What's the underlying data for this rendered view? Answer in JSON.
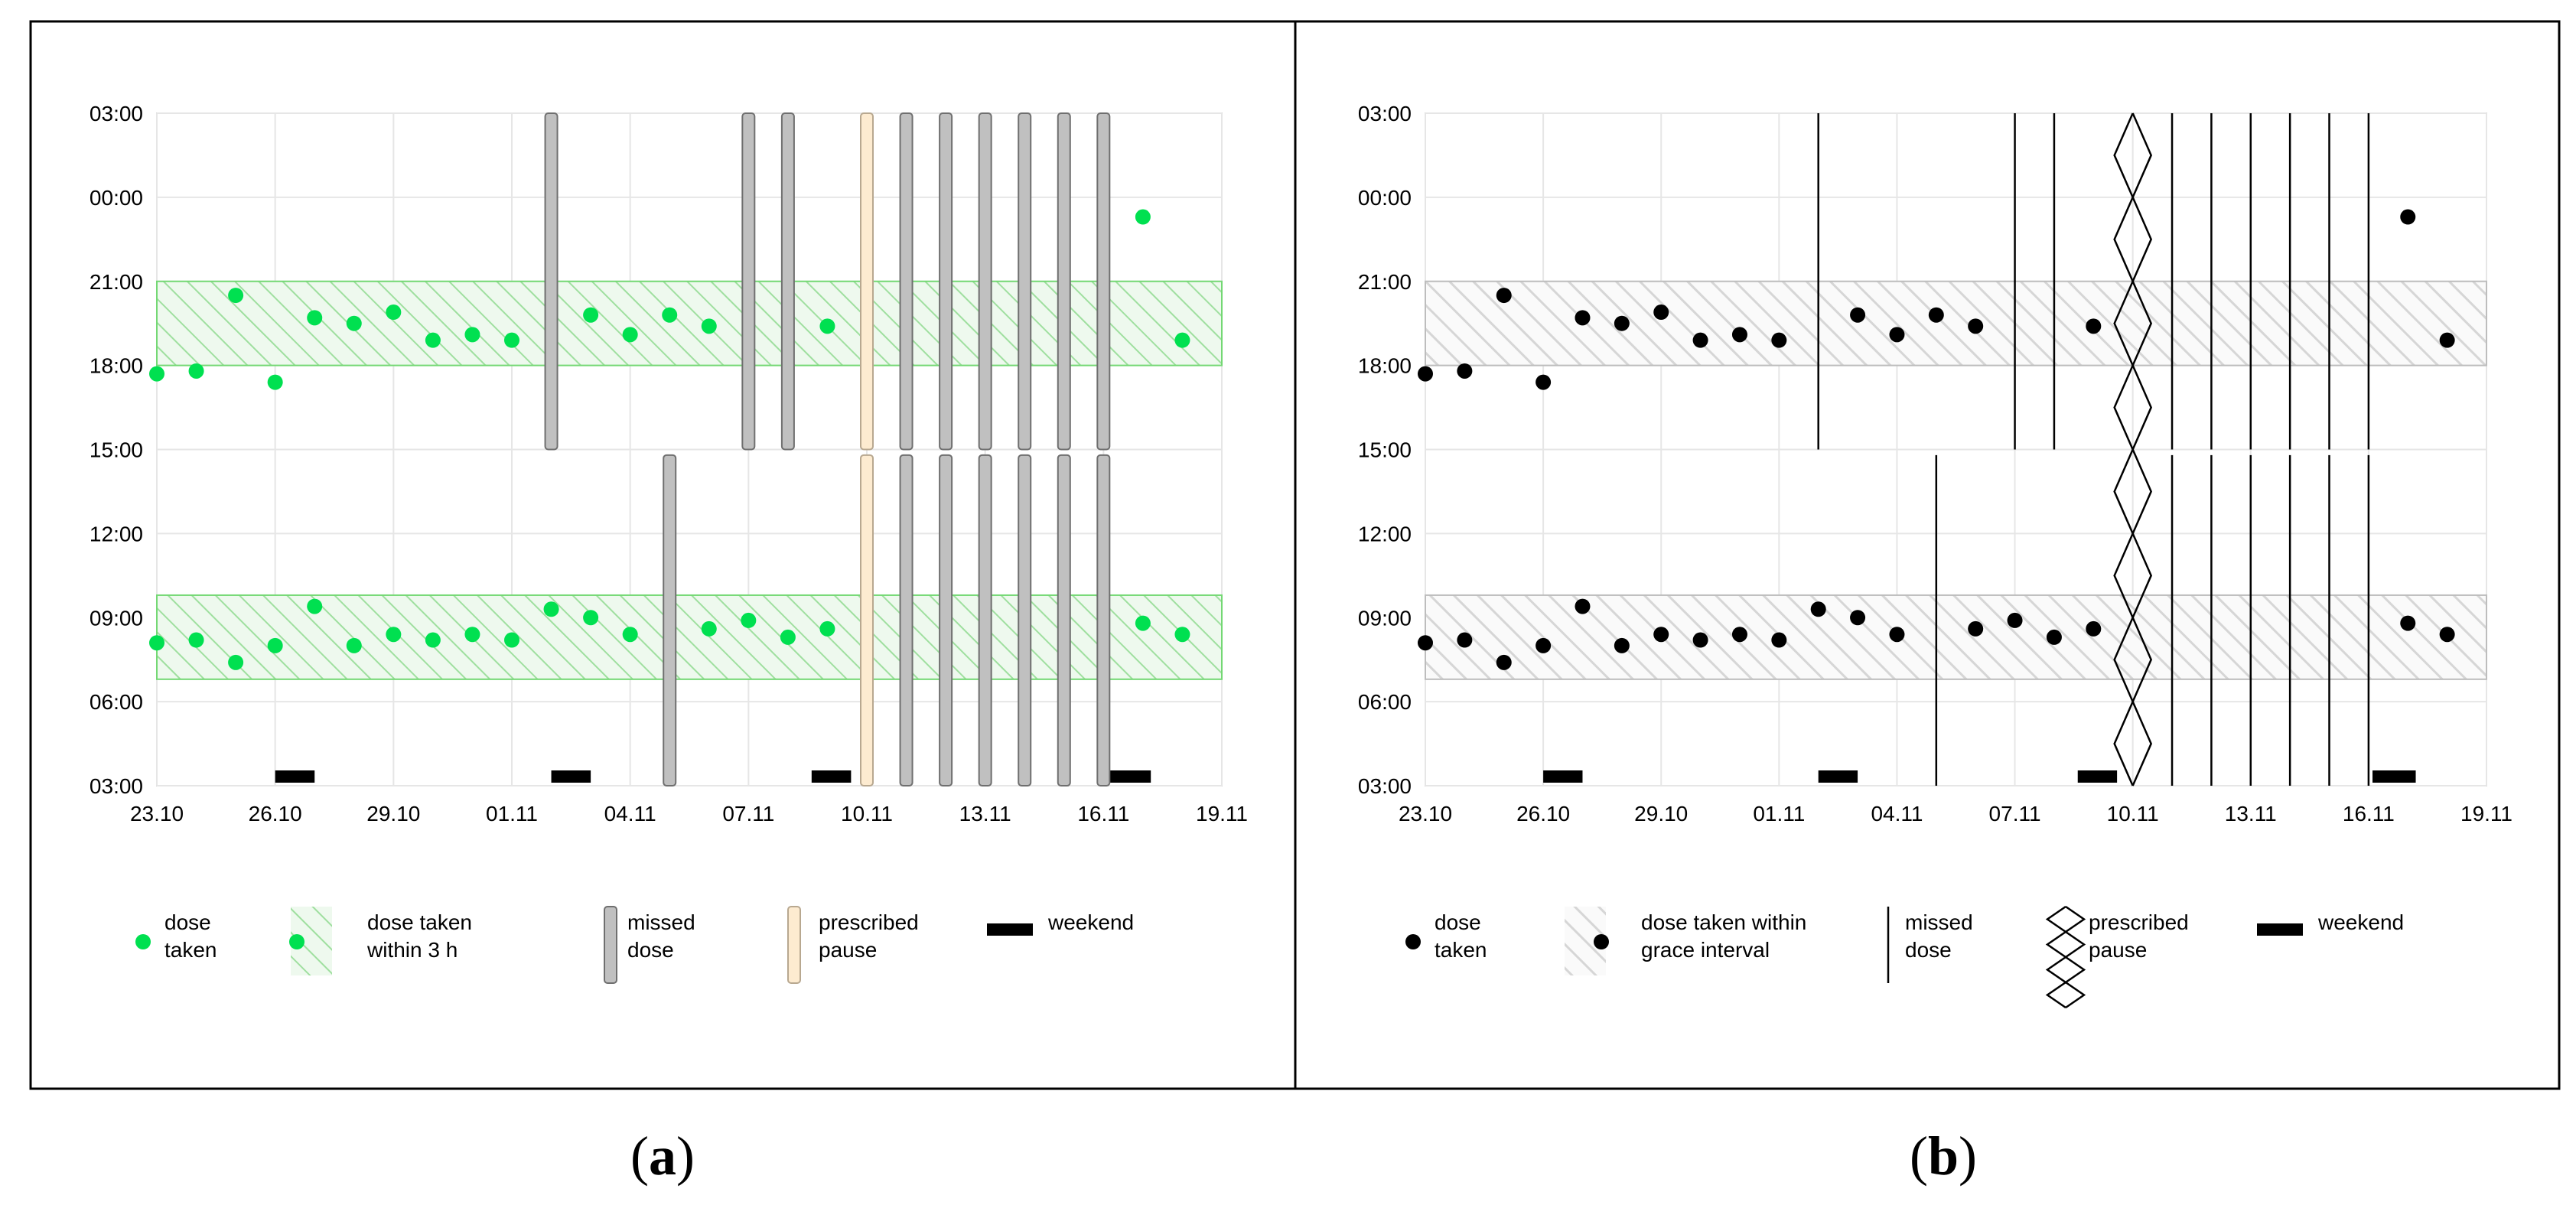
{
  "chart_data": [
    {
      "panel": "a",
      "type": "scatter",
      "title": "",
      "xlabel": "",
      "ylabel": "",
      "x_tick_labels": [
        "23.10",
        "26.10",
        "29.10",
        "01.11",
        "04.11",
        "07.11",
        "10.11",
        "13.11",
        "16.11",
        "19.11"
      ],
      "y_tick_labels": [
        "03:00",
        "06:00",
        "09:00",
        "12:00",
        "15:00",
        "18:00",
        "21:00",
        "00:00",
        "03:00"
      ],
      "x_range_days": [
        0,
        27
      ],
      "y_range_hours": [
        3,
        27
      ],
      "grace_intervals_hours": [
        [
          6.8,
          9.8
        ],
        [
          18,
          21
        ]
      ],
      "doses_taken": [
        {
          "day": 0,
          "hour": 17.7
        },
        {
          "day": 1,
          "hour": 17.8
        },
        {
          "day": 2,
          "hour": 20.5
        },
        {
          "day": 3,
          "hour": 17.4
        },
        {
          "day": 4,
          "hour": 19.7
        },
        {
          "day": 5,
          "hour": 19.5
        },
        {
          "day": 6,
          "hour": 19.9
        },
        {
          "day": 7,
          "hour": 18.9
        },
        {
          "day": 8,
          "hour": 19.1
        },
        {
          "day": 9,
          "hour": 18.9
        },
        {
          "day": 11,
          "hour": 19.8
        },
        {
          "day": 12,
          "hour": 19.1
        },
        {
          "day": 13,
          "hour": 19.8
        },
        {
          "day": 14,
          "hour": 19.4
        },
        {
          "day": 17,
          "hour": 19.4
        },
        {
          "day": 25,
          "hour": 23.3
        },
        {
          "day": 26,
          "hour": 18.9
        },
        {
          "day": 0,
          "hour": 8.1
        },
        {
          "day": 1,
          "hour": 8.2
        },
        {
          "day": 2,
          "hour": 7.4
        },
        {
          "day": 3,
          "hour": 8.0
        },
        {
          "day": 4,
          "hour": 9.4
        },
        {
          "day": 5,
          "hour": 8.0
        },
        {
          "day": 6,
          "hour": 8.4
        },
        {
          "day": 7,
          "hour": 8.2
        },
        {
          "day": 8,
          "hour": 8.4
        },
        {
          "day": 9,
          "hour": 8.2
        },
        {
          "day": 10,
          "hour": 9.3
        },
        {
          "day": 11,
          "hour": 9.0
        },
        {
          "day": 12,
          "hour": 8.4
        },
        {
          "day": 14,
          "hour": 8.6
        },
        {
          "day": 15,
          "hour": 8.9
        },
        {
          "day": 16,
          "hour": 8.3
        },
        {
          "day": 17,
          "hour": 8.6
        },
        {
          "day": 25,
          "hour": 8.8
        },
        {
          "day": 26,
          "hour": 8.4
        }
      ],
      "missed_doses": [
        {
          "day": 10,
          "slot": "evening"
        },
        {
          "day": 15,
          "slot": "evening"
        },
        {
          "day": 16,
          "slot": "evening"
        },
        {
          "day": 19,
          "slot": "evening"
        },
        {
          "day": 20,
          "slot": "evening"
        },
        {
          "day": 21,
          "slot": "evening"
        },
        {
          "day": 22,
          "slot": "evening"
        },
        {
          "day": 23,
          "slot": "evening"
        },
        {
          "day": 24,
          "slot": "evening"
        },
        {
          "day": 13,
          "slot": "morning"
        },
        {
          "day": 19,
          "slot": "morning"
        },
        {
          "day": 20,
          "slot": "morning"
        },
        {
          "day": 21,
          "slot": "morning"
        },
        {
          "day": 22,
          "slot": "morning"
        },
        {
          "day": 23,
          "slot": "morning"
        },
        {
          "day": 24,
          "slot": "morning"
        }
      ],
      "prescribed_pause": [
        {
          "day": 18,
          "slot": "evening"
        },
        {
          "day": 18,
          "slot": "morning"
        }
      ],
      "weekends": [
        [
          3,
          4
        ],
        [
          10,
          11
        ],
        [
          16.6,
          17.6
        ],
        [
          24.1,
          25.2
        ]
      ],
      "legend": [
        {
          "key": "dose",
          "label_lines": [
            "dose",
            "taken"
          ]
        },
        {
          "key": "band",
          "label_lines": [
            "dose taken",
            "within 3 h"
          ]
        },
        {
          "key": "missed",
          "label_lines": [
            "missed",
            "dose"
          ]
        },
        {
          "key": "pause",
          "label_lines": [
            "prescribed",
            "pause"
          ]
        },
        {
          "key": "weekend",
          "label_lines": [
            "weekend"
          ]
        }
      ],
      "colors": {
        "dose": "#00e050",
        "band": "#74d874",
        "band_fill": "#eaf7ea",
        "missed": "#c0c0c0",
        "missed_stroke": "#6f6f6f",
        "pause": "#fdebd0",
        "pause_stroke": "#b8a890",
        "weekend": "#000000"
      }
    },
    {
      "panel": "b",
      "type": "scatter",
      "title": "",
      "xlabel": "",
      "ylabel": "",
      "x_tick_labels": [
        "23.10",
        "26.10",
        "29.10",
        "01.11",
        "04.11",
        "07.11",
        "10.11",
        "13.11",
        "16.11",
        "19.11"
      ],
      "y_tick_labels": [
        "03:00",
        "06:00",
        "09:00",
        "12:00",
        "15:00",
        "18:00",
        "21:00",
        "00:00",
        "03:00"
      ],
      "x_range_days": [
        0,
        27
      ],
      "y_range_hours": [
        3,
        27
      ],
      "grace_intervals_hours": [
        [
          6.8,
          9.8
        ],
        [
          18,
          21
        ]
      ],
      "doses_taken": [
        {
          "day": 0,
          "hour": 17.7
        },
        {
          "day": 1,
          "hour": 17.8
        },
        {
          "day": 2,
          "hour": 20.5
        },
        {
          "day": 3,
          "hour": 17.4
        },
        {
          "day": 4,
          "hour": 19.7
        },
        {
          "day": 5,
          "hour": 19.5
        },
        {
          "day": 6,
          "hour": 19.9
        },
        {
          "day": 7,
          "hour": 18.9
        },
        {
          "day": 8,
          "hour": 19.1
        },
        {
          "day": 9,
          "hour": 18.9
        },
        {
          "day": 11,
          "hour": 19.8
        },
        {
          "day": 12,
          "hour": 19.1
        },
        {
          "day": 13,
          "hour": 19.8
        },
        {
          "day": 14,
          "hour": 19.4
        },
        {
          "day": 17,
          "hour": 19.4
        },
        {
          "day": 25,
          "hour": 23.3
        },
        {
          "day": 26,
          "hour": 18.9
        },
        {
          "day": 0,
          "hour": 8.1
        },
        {
          "day": 1,
          "hour": 8.2
        },
        {
          "day": 2,
          "hour": 7.4
        },
        {
          "day": 3,
          "hour": 8.0
        },
        {
          "day": 4,
          "hour": 9.4
        },
        {
          "day": 5,
          "hour": 8.0
        },
        {
          "day": 6,
          "hour": 8.4
        },
        {
          "day": 7,
          "hour": 8.2
        },
        {
          "day": 8,
          "hour": 8.4
        },
        {
          "day": 9,
          "hour": 8.2
        },
        {
          "day": 10,
          "hour": 9.3
        },
        {
          "day": 11,
          "hour": 9.0
        },
        {
          "day": 12,
          "hour": 8.4
        },
        {
          "day": 14,
          "hour": 8.6
        },
        {
          "day": 15,
          "hour": 8.9
        },
        {
          "day": 16,
          "hour": 8.3
        },
        {
          "day": 17,
          "hour": 8.6
        },
        {
          "day": 25,
          "hour": 8.8
        },
        {
          "day": 26,
          "hour": 8.4
        }
      ],
      "missed_doses": [
        {
          "day": 10,
          "slot": "evening"
        },
        {
          "day": 15,
          "slot": "evening"
        },
        {
          "day": 16,
          "slot": "evening"
        },
        {
          "day": 19,
          "slot": "evening"
        },
        {
          "day": 20,
          "slot": "evening"
        },
        {
          "day": 21,
          "slot": "evening"
        },
        {
          "day": 22,
          "slot": "evening"
        },
        {
          "day": 23,
          "slot": "evening"
        },
        {
          "day": 24,
          "slot": "evening"
        },
        {
          "day": 13,
          "slot": "morning"
        },
        {
          "day": 19,
          "slot": "morning"
        },
        {
          "day": 20,
          "slot": "morning"
        },
        {
          "day": 21,
          "slot": "morning"
        },
        {
          "day": 22,
          "slot": "morning"
        },
        {
          "day": 23,
          "slot": "morning"
        },
        {
          "day": 24,
          "slot": "morning"
        }
      ],
      "prescribed_pause": [
        {
          "day": 18,
          "slot": "full"
        }
      ],
      "weekends": [
        [
          3,
          4
        ],
        [
          10,
          11
        ],
        [
          16.6,
          17.6
        ],
        [
          24.1,
          25.2
        ]
      ],
      "legend": [
        {
          "key": "dose",
          "label_lines": [
            "dose",
            "taken"
          ]
        },
        {
          "key": "band",
          "label_lines": [
            "dose taken within",
            "grace interval"
          ]
        },
        {
          "key": "missed",
          "label_lines": [
            "missed",
            "dose"
          ]
        },
        {
          "key": "pause",
          "label_lines": [
            "prescribed",
            "pause"
          ]
        },
        {
          "key": "weekend",
          "label_lines": [
            "weekend"
          ]
        }
      ],
      "colors": {
        "dose": "#000000",
        "band": "#bdbdbd",
        "band_fill": "#f4f4f4",
        "missed": "#000000",
        "missed_stroke": "#000000",
        "pause": "#000000",
        "pause_stroke": "#000000",
        "weekend": "#000000"
      }
    }
  ],
  "panel_labels": {
    "a": "a",
    "b": "b"
  }
}
